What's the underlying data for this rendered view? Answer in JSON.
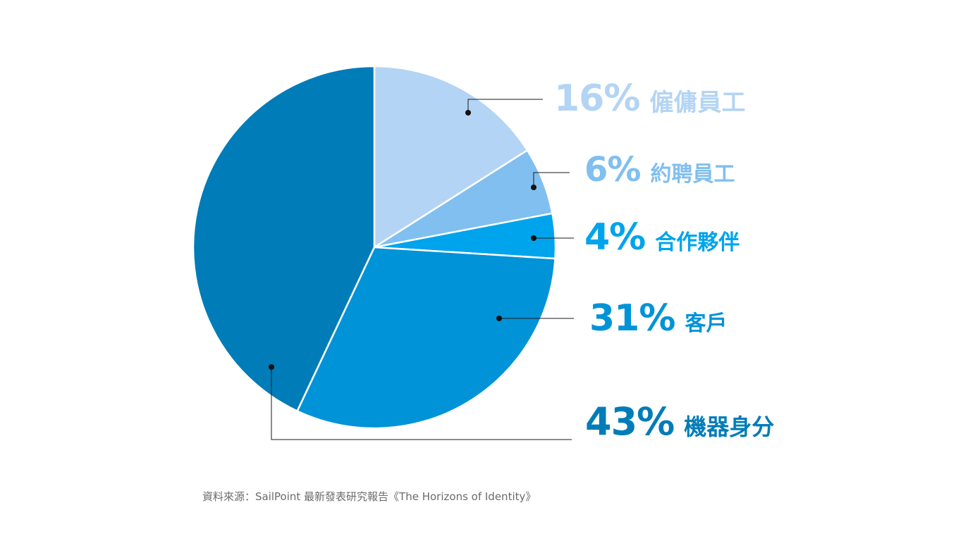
{
  "chart_data": {
    "type": "pie",
    "categories": [
      "僱傭員工",
      "約聘員工",
      "合作夥伴",
      "客戶",
      "機器身分"
    ],
    "values": [
      16,
      6,
      4,
      31,
      43
    ],
    "value_labels": [
      "16%",
      "6%",
      "4%",
      "31%",
      "43%"
    ],
    "colors": [
      "#b3d4f4",
      "#80bfef",
      "#00a4ec",
      "#0093d8",
      "#007cb8"
    ],
    "start": "12 o'clock",
    "direction": "clockwise",
    "legend": "callout labels on the right with leader lines"
  },
  "source": "資料來源：SailPoint 最新發表研究報告《The Horizons of Identity》"
}
